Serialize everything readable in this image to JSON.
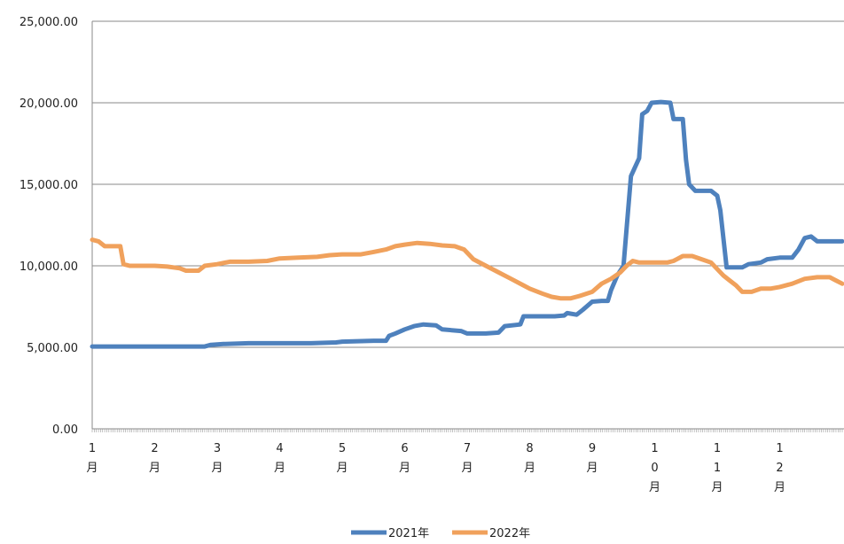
{
  "chart_data": {
    "type": "line",
    "title": "",
    "xlabel": "",
    "ylabel": "",
    "ylim": [
      0,
      25000
    ],
    "grid": "horizontal",
    "legend_placement": "bottom",
    "y_ticks": [
      {
        "value": 0,
        "label": "0.00"
      },
      {
        "value": 5000,
        "label": "5,000.00"
      },
      {
        "value": 10000,
        "label": "10,000.00"
      },
      {
        "value": 15000,
        "label": "15,000.00"
      },
      {
        "value": 20000,
        "label": "20,000.00"
      },
      {
        "value": 25000,
        "label": "25,000.00"
      }
    ],
    "x_ticks": [
      {
        "value": 1,
        "label": "1月",
        "lines": [
          "1",
          "月"
        ]
      },
      {
        "value": 2,
        "label": "2月",
        "lines": [
          "2",
          "月"
        ]
      },
      {
        "value": 3,
        "label": "3月",
        "lines": [
          "3",
          "月"
        ]
      },
      {
        "value": 4,
        "label": "4月",
        "lines": [
          "4",
          "月"
        ]
      },
      {
        "value": 5,
        "label": "5月",
        "lines": [
          "5",
          "月"
        ]
      },
      {
        "value": 6,
        "label": "6月",
        "lines": [
          "6",
          "月"
        ]
      },
      {
        "value": 7,
        "label": "7月",
        "lines": [
          "7",
          "月"
        ]
      },
      {
        "value": 8,
        "label": "8月",
        "lines": [
          "8",
          "月"
        ]
      },
      {
        "value": 9,
        "label": "9月",
        "lines": [
          "9",
          "月"
        ]
      },
      {
        "value": 10,
        "label": "10月",
        "lines": [
          "1",
          "0",
          "月"
        ]
      },
      {
        "value": 11,
        "label": "11月",
        "lines": [
          "1",
          "1",
          "月"
        ]
      },
      {
        "value": 12,
        "label": "12月",
        "lines": [
          "1",
          "2",
          "月"
        ]
      }
    ],
    "xlim": [
      1,
      13.0
    ],
    "series": [
      {
        "name": "2021年",
        "color": "#4E81BD",
        "points": [
          [
            1.0,
            5050
          ],
          [
            1.5,
            5050
          ],
          [
            2.0,
            5050
          ],
          [
            2.5,
            5050
          ],
          [
            2.8,
            5050
          ],
          [
            2.9,
            5150
          ],
          [
            3.1,
            5200
          ],
          [
            3.5,
            5250
          ],
          [
            4.0,
            5250
          ],
          [
            4.5,
            5250
          ],
          [
            4.9,
            5300
          ],
          [
            5.0,
            5350
          ],
          [
            5.5,
            5400
          ],
          [
            5.7,
            5400
          ],
          [
            5.75,
            5700
          ],
          [
            5.85,
            5850
          ],
          [
            6.0,
            6100
          ],
          [
            6.15,
            6300
          ],
          [
            6.3,
            6400
          ],
          [
            6.5,
            6350
          ],
          [
            6.6,
            6100
          ],
          [
            6.9,
            6000
          ],
          [
            7.0,
            5850
          ],
          [
            7.3,
            5850
          ],
          [
            7.5,
            5900
          ],
          [
            7.6,
            6300
          ],
          [
            7.85,
            6400
          ],
          [
            7.9,
            6900
          ],
          [
            8.2,
            6900
          ],
          [
            8.4,
            6900
          ],
          [
            8.55,
            6950
          ],
          [
            8.6,
            7100
          ],
          [
            8.75,
            7000
          ],
          [
            8.85,
            7300
          ],
          [
            9.0,
            7800
          ],
          [
            9.15,
            7850
          ],
          [
            9.25,
            7850
          ],
          [
            9.3,
            8500
          ],
          [
            9.4,
            9400
          ],
          [
            9.5,
            10000
          ],
          [
            9.55,
            12300
          ],
          [
            9.62,
            15500
          ],
          [
            9.68,
            16000
          ],
          [
            9.75,
            16600
          ],
          [
            9.8,
            19300
          ],
          [
            9.88,
            19500
          ],
          [
            9.95,
            20000
          ],
          [
            10.1,
            20050
          ],
          [
            10.25,
            20000
          ],
          [
            10.3,
            19000
          ],
          [
            10.45,
            19000
          ],
          [
            10.5,
            16500
          ],
          [
            10.55,
            15000
          ],
          [
            10.65,
            14600
          ],
          [
            10.9,
            14600
          ],
          [
            11.0,
            14300
          ],
          [
            11.05,
            13400
          ],
          [
            11.15,
            9900
          ],
          [
            11.4,
            9900
          ],
          [
            11.5,
            10100
          ],
          [
            11.7,
            10200
          ],
          [
            11.8,
            10400
          ],
          [
            12.0,
            10500
          ],
          [
            12.2,
            10500
          ],
          [
            12.3,
            11000
          ],
          [
            12.4,
            11700
          ],
          [
            12.5,
            11800
          ],
          [
            12.6,
            11500
          ],
          [
            13.0,
            11500
          ]
        ]
      },
      {
        "name": "2022年",
        "color": "#F0A15C",
        "points": [
          [
            1.0,
            11600
          ],
          [
            1.1,
            11500
          ],
          [
            1.2,
            11200
          ],
          [
            1.45,
            11200
          ],
          [
            1.5,
            10100
          ],
          [
            1.6,
            10000
          ],
          [
            2.0,
            10000
          ],
          [
            2.2,
            9950
          ],
          [
            2.4,
            9850
          ],
          [
            2.5,
            9700
          ],
          [
            2.7,
            9700
          ],
          [
            2.8,
            10000
          ],
          [
            3.0,
            10100
          ],
          [
            3.2,
            10250
          ],
          [
            3.5,
            10250
          ],
          [
            3.8,
            10300
          ],
          [
            4.0,
            10450
          ],
          [
            4.3,
            10500
          ],
          [
            4.6,
            10550
          ],
          [
            4.8,
            10650
          ],
          [
            5.0,
            10700
          ],
          [
            5.3,
            10700
          ],
          [
            5.5,
            10850
          ],
          [
            5.7,
            11000
          ],
          [
            5.85,
            11200
          ],
          [
            6.0,
            11300
          ],
          [
            6.2,
            11400
          ],
          [
            6.4,
            11350
          ],
          [
            6.6,
            11250
          ],
          [
            6.8,
            11200
          ],
          [
            6.95,
            11000
          ],
          [
            7.1,
            10400
          ],
          [
            7.3,
            10000
          ],
          [
            7.5,
            9600
          ],
          [
            7.7,
            9200
          ],
          [
            7.9,
            8800
          ],
          [
            8.0,
            8600
          ],
          [
            8.2,
            8300
          ],
          [
            8.35,
            8100
          ],
          [
            8.5,
            8000
          ],
          [
            8.65,
            8000
          ],
          [
            8.8,
            8150
          ],
          [
            9.0,
            8400
          ],
          [
            9.15,
            8900
          ],
          [
            9.3,
            9200
          ],
          [
            9.45,
            9600
          ],
          [
            9.55,
            10000
          ],
          [
            9.65,
            10300
          ],
          [
            9.75,
            10200
          ],
          [
            10.0,
            10200
          ],
          [
            10.2,
            10200
          ],
          [
            10.3,
            10300
          ],
          [
            10.45,
            10600
          ],
          [
            10.6,
            10600
          ],
          [
            10.75,
            10400
          ],
          [
            10.9,
            10200
          ],
          [
            11.0,
            9800
          ],
          [
            11.1,
            9400
          ],
          [
            11.2,
            9100
          ],
          [
            11.3,
            8800
          ],
          [
            11.4,
            8400
          ],
          [
            11.55,
            8400
          ],
          [
            11.7,
            8600
          ],
          [
            11.85,
            8600
          ],
          [
            12.0,
            8700
          ],
          [
            12.2,
            8900
          ],
          [
            12.4,
            9200
          ],
          [
            12.6,
            9300
          ],
          [
            12.8,
            9300
          ],
          [
            12.9,
            9100
          ],
          [
            13.0,
            8900
          ]
        ]
      }
    ]
  }
}
